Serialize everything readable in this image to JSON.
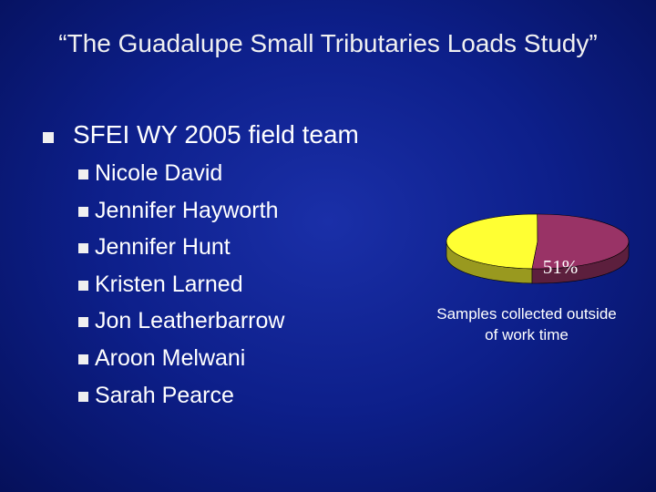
{
  "slide": {
    "title": "“The Guadalupe Small Tributaries Loads Study”",
    "bullet": "SFEI WY 2005 field team",
    "members": [
      "Nicole David",
      "Jennifer Hayworth",
      "Jennifer Hunt",
      "Kristen Larned",
      "Jon Leatherbarrow",
      "Aroon Melwani",
      "Sarah Pearce"
    ]
  },
  "chart_data": {
    "type": "pie",
    "values": [
      49,
      51
    ],
    "value_labels": [
      null,
      "51%"
    ],
    "colors": [
      "#ffff33",
      "#993366"
    ],
    "caption": "Samples collected outside of work time"
  }
}
